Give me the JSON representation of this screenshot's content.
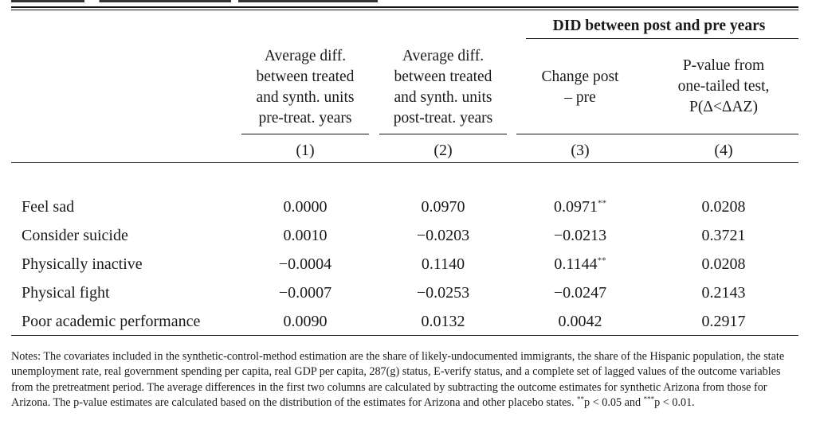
{
  "table": {
    "group_header": "DID between post and pre years",
    "columns": [
      {
        "lines": [
          "Average diff.",
          "between treated",
          "and synth. units",
          "pre-treat. years"
        ],
        "number": "(1)"
      },
      {
        "lines": [
          "Average diff.",
          "between treated",
          "and synth. units",
          "post-treat. years"
        ],
        "number": "(2)"
      },
      {
        "lines": [
          "Change post",
          "– pre"
        ],
        "number": "(3)"
      },
      {
        "lines": [
          "P-value from",
          "one-tailed test,",
          "P(Δ<ΔAZ)"
        ],
        "number": "(4)"
      }
    ],
    "rows": [
      {
        "label": "Feel sad",
        "values": [
          "0.0000",
          "0.0970",
          "0.0971",
          "0.0208"
        ],
        "stars": [
          "",
          "",
          "**",
          ""
        ]
      },
      {
        "label": "Consider suicide",
        "values": [
          "0.0010",
          "−0.0203",
          "−0.0213",
          "0.3721"
        ],
        "stars": [
          "",
          "",
          "",
          ""
        ]
      },
      {
        "label": "Physically inactive",
        "values": [
          "−0.0004",
          "0.1140",
          "0.1144",
          "0.0208"
        ],
        "stars": [
          "",
          "",
          "**",
          ""
        ]
      },
      {
        "label": "Physical fight",
        "values": [
          "−0.0007",
          "−0.0253",
          "−0.0247",
          "0.2143"
        ],
        "stars": [
          "",
          "",
          "",
          ""
        ]
      },
      {
        "label": "Poor academic performance",
        "values": [
          "0.0090",
          "0.0132",
          "0.0042",
          "0.2917"
        ],
        "stars": [
          "",
          "",
          "",
          ""
        ]
      }
    ]
  },
  "notes": {
    "lead": "Notes:",
    "body": " The covariates included in the synthetic-control-method estimation are the share of likely-undocumented immigrants, the share of the Hispanic population, the state unemployment rate, real government spending per capita, real GDP per capita, 287(g) status, E-verify status, and a complete set of lagged values of the outcome variables from the pretreatment period. The average differences in the first two columns are calculated by subtracting the outcome estimates for synthetic Arizona from those for Arizona. The p-value estimates are calculated based on the distribution of the estimates for Arizona and other placebo states. ",
    "star2": "**",
    "star2_text": "p < 0.05 and ",
    "star3": "***",
    "star3_text": "p < 0.01."
  }
}
